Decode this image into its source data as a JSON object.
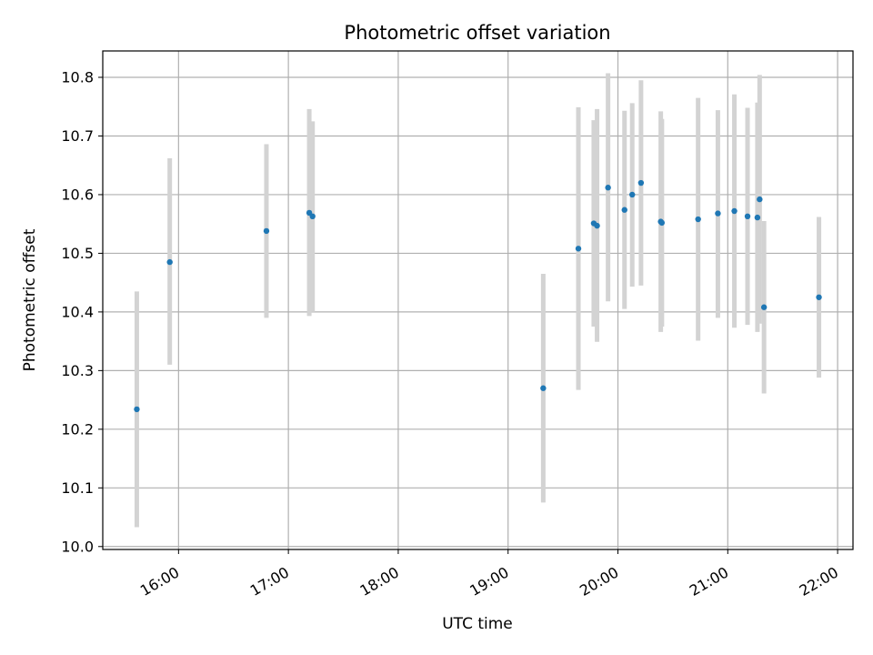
{
  "chart_data": {
    "type": "scatter",
    "title": "Photometric offset variation",
    "xlabel": "UTC time",
    "ylabel": "Photometric offset",
    "grid": true,
    "marker_color": "#1f77b4",
    "errorbar_color": "#d3d3d3",
    "xlim": [
      15.31,
      22.14
    ],
    "ylim": [
      9.995,
      10.845
    ],
    "x_ticks": [
      16,
      17,
      18,
      19,
      20,
      21,
      22
    ],
    "x_tick_labels": [
      "16:00",
      "17:00",
      "18:00",
      "19:00",
      "20:00",
      "21:00",
      "22:00"
    ],
    "y_ticks": [
      10.0,
      10.1,
      10.2,
      10.3,
      10.4,
      10.5,
      10.6,
      10.7,
      10.8
    ],
    "y_tick_labels": [
      "10.0",
      "10.1",
      "10.2",
      "10.3",
      "10.4",
      "10.5",
      "10.6",
      "10.7",
      "10.8"
    ],
    "points": [
      {
        "x": 15.62,
        "y": 10.234,
        "ylow": 10.033,
        "yhigh": 10.435
      },
      {
        "x": 15.92,
        "y": 10.485,
        "ylow": 10.31,
        "yhigh": 10.662
      },
      {
        "x": 16.8,
        "y": 10.538,
        "ylow": 10.39,
        "yhigh": 10.686
      },
      {
        "x": 17.19,
        "y": 10.569,
        "ylow": 10.393,
        "yhigh": 10.746
      },
      {
        "x": 17.22,
        "y": 10.563,
        "ylow": 10.4,
        "yhigh": 10.725
      },
      {
        "x": 19.32,
        "y": 10.27,
        "ylow": 10.075,
        "yhigh": 10.465
      },
      {
        "x": 19.64,
        "y": 10.508,
        "ylow": 10.267,
        "yhigh": 10.749
      },
      {
        "x": 19.78,
        "y": 10.551,
        "ylow": 10.375,
        "yhigh": 10.727
      },
      {
        "x": 19.81,
        "y": 10.547,
        "ylow": 10.349,
        "yhigh": 10.746
      },
      {
        "x": 19.91,
        "y": 10.612,
        "ylow": 10.418,
        "yhigh": 10.807
      },
      {
        "x": 20.06,
        "y": 10.574,
        "ylow": 10.405,
        "yhigh": 10.743
      },
      {
        "x": 20.13,
        "y": 10.6,
        "ylow": 10.443,
        "yhigh": 10.756
      },
      {
        "x": 20.21,
        "y": 10.62,
        "ylow": 10.445,
        "yhigh": 10.795
      },
      {
        "x": 20.39,
        "y": 10.554,
        "ylow": 10.366,
        "yhigh": 10.742
      },
      {
        "x": 20.4,
        "y": 10.552,
        "ylow": 10.375,
        "yhigh": 10.729
      },
      {
        "x": 20.73,
        "y": 10.558,
        "ylow": 10.351,
        "yhigh": 10.765
      },
      {
        "x": 20.91,
        "y": 10.568,
        "ylow": 10.39,
        "yhigh": 10.744
      },
      {
        "x": 21.06,
        "y": 10.572,
        "ylow": 10.373,
        "yhigh": 10.771
      },
      {
        "x": 21.18,
        "y": 10.563,
        "ylow": 10.378,
        "yhigh": 10.748
      },
      {
        "x": 21.27,
        "y": 10.561,
        "ylow": 10.366,
        "yhigh": 10.757
      },
      {
        "x": 21.29,
        "y": 10.592,
        "ylow": 10.38,
        "yhigh": 10.804
      },
      {
        "x": 21.33,
        "y": 10.408,
        "ylow": 10.261,
        "yhigh": 10.555
      },
      {
        "x": 21.83,
        "y": 10.425,
        "ylow": 10.288,
        "yhigh": 10.562
      }
    ]
  }
}
